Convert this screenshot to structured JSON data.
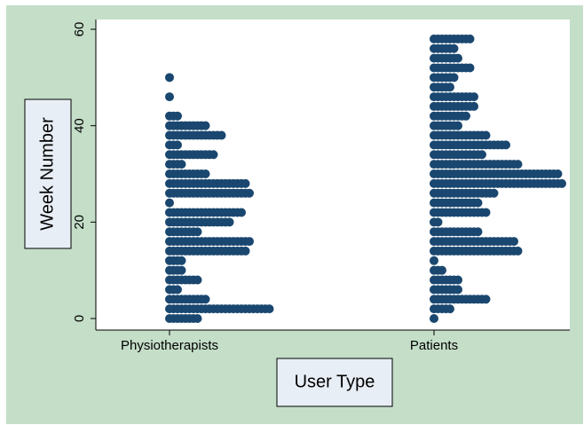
{
  "chart_data": {
    "type": "dot",
    "y_label": "Week Number",
    "x_label": "User Type",
    "categories": [
      "Physiotherapists",
      "Patients"
    ],
    "weeks": [
      0,
      2,
      4,
      6,
      8,
      10,
      12,
      14,
      16,
      18,
      20,
      22,
      24,
      26,
      28,
      30,
      32,
      34,
      36,
      38,
      40,
      42,
      44,
      46,
      48,
      50,
      52,
      54,
      56,
      58
    ],
    "counts": [
      [
        8,
        26,
        10,
        3,
        8,
        4,
        4,
        20,
        21,
        8,
        16,
        19,
        1,
        21,
        20,
        10,
        4,
        12,
        3,
        14,
        10,
        3,
        0,
        1,
        0,
        1,
        0,
        0,
        0,
        0
      ],
      [
        1,
        5,
        14,
        7,
        7,
        3,
        1,
        22,
        21,
        12,
        2,
        14,
        12,
        16,
        33,
        32,
        22,
        13,
        19,
        14,
        7,
        9,
        11,
        11,
        5,
        6,
        10,
        7,
        6,
        10
      ]
    ],
    "color": "#1a476f",
    "ylim": [
      0,
      60
    ],
    "yticks": [
      0,
      20,
      40,
      60
    ]
  }
}
